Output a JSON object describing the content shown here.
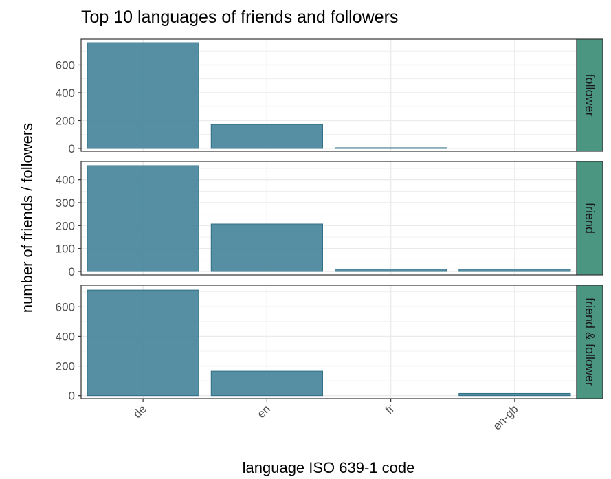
{
  "chart_data": {
    "type": "bar",
    "title": "Top 10 languages of friends and followers",
    "xlabel": "language ISO 639-1 code",
    "ylabel": "number of friends / followers",
    "categories": [
      "de",
      "en",
      "fr",
      "en-gb"
    ],
    "bar_color": "#3f7f96",
    "strip_color": "#4a9680",
    "panel_border_color": "#333333",
    "grid_color": "#ebebeb",
    "panels": [
      {
        "label": "follower",
        "ylim": [
          -20,
          785
        ],
        "yticks": [
          0,
          200,
          400,
          600
        ],
        "values": [
          760,
          172,
          5,
          null
        ]
      },
      {
        "label": "friend",
        "ylim": [
          -15,
          480
        ],
        "yticks": [
          0,
          100,
          200,
          300,
          400
        ],
        "values": [
          462,
          207,
          10,
          10
        ]
      },
      {
        "label": "friend & follower",
        "ylim": [
          -20,
          745
        ],
        "yticks": [
          0,
          200,
          400,
          600
        ],
        "values": [
          712,
          165,
          null,
          15
        ]
      }
    ]
  }
}
